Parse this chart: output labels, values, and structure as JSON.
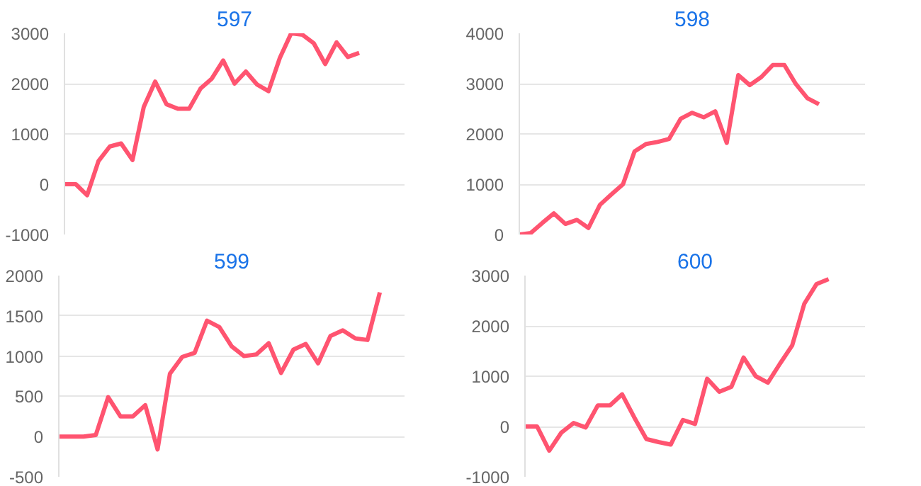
{
  "chart_data": [
    {
      "type": "line",
      "title": "597",
      "categories": [
        null,
        null,
        null,
        null,
        null,
        null,
        null,
        null,
        null,
        null,
        null,
        null,
        null,
        null,
        null,
        null,
        null,
        null,
        null,
        null,
        null,
        null,
        null,
        null,
        null,
        null,
        null,
        null,
        null,
        null,
        null
      ],
      "series": [
        {
          "color": "#ff5470",
          "values": [
            0,
            0,
            -220,
            460,
            750,
            810,
            480,
            1540,
            2040,
            1590,
            1500,
            1500,
            1900,
            2100,
            2460,
            2000,
            2240,
            1980,
            1850,
            2510,
            3000,
            2970,
            2800,
            2390,
            2820,
            2530,
            2610,
            null,
            null,
            null,
            null
          ]
        }
      ],
      "ylim": [
        -1000,
        3000
      ],
      "yticks": [
        -1000,
        0,
        1000,
        2000,
        3000
      ],
      "grid": "y",
      "tick_labels": "y",
      "line_style": "solid",
      "marker": "none"
    },
    {
      "type": "line",
      "title": "598",
      "categories": [
        null,
        null,
        null,
        null,
        null,
        null,
        null,
        null,
        null,
        null,
        null,
        null,
        null,
        null,
        null,
        null,
        null,
        null,
        null,
        null,
        null,
        null,
        null,
        null,
        null,
        null,
        null,
        null,
        null,
        null,
        null
      ],
      "series": [
        {
          "color": "#ff5470",
          "values": [
            0,
            30,
            230,
            420,
            210,
            290,
            130,
            590,
            800,
            1000,
            1650,
            1800,
            1840,
            1900,
            2300,
            2420,
            2330,
            2450,
            1820,
            3170,
            2970,
            3130,
            3370,
            3370,
            2990,
            2710,
            2590,
            null,
            null,
            null,
            null
          ]
        }
      ],
      "ylim": [
        0,
        4000
      ],
      "yticks": [
        0,
        1000,
        2000,
        3000,
        4000
      ],
      "grid": "y",
      "tick_labels": "y",
      "line_style": "solid",
      "marker": "none"
    },
    {
      "type": "line",
      "title": "599",
      "categories": [
        null,
        null,
        null,
        null,
        null,
        null,
        null,
        null,
        null,
        null,
        null,
        null,
        null,
        null,
        null,
        null,
        null,
        null,
        null,
        null,
        null,
        null,
        null,
        null,
        null,
        null,
        null,
        null,
        null
      ],
      "series": [
        {
          "color": "#ff5470",
          "values": [
            0,
            0,
            0,
            20,
            490,
            250,
            250,
            390,
            -160,
            780,
            990,
            1040,
            1440,
            1360,
            1120,
            1000,
            1020,
            1160,
            790,
            1080,
            1150,
            910,
            1250,
            1320,
            1220,
            1200,
            1790,
            null,
            null
          ]
        }
      ],
      "ylim": [
        -500,
        2000
      ],
      "yticks": [
        -500,
        0,
        500,
        1000,
        1500,
        2000
      ],
      "grid": "y",
      "tick_labels": "y",
      "line_style": "solid",
      "marker": "none"
    },
    {
      "type": "line",
      "title": "600",
      "categories": [
        null,
        null,
        null,
        null,
        null,
        null,
        null,
        null,
        null,
        null,
        null,
        null,
        null,
        null,
        null,
        null,
        null,
        null,
        null,
        null,
        null,
        null,
        null,
        null,
        null,
        null,
        null,
        null,
        null
      ],
      "series": [
        {
          "color": "#ff5470",
          "values": [
            0,
            0,
            -480,
            -120,
            70,
            -20,
            420,
            420,
            640,
            180,
            -250,
            -310,
            -360,
            130,
            50,
            950,
            690,
            790,
            1370,
            1000,
            870,
            1250,
            1610,
            2440,
            2830,
            2930,
            null,
            null,
            null
          ]
        }
      ],
      "ylim": [
        -1000,
        3000
      ],
      "yticks": [
        -1000,
        0,
        1000,
        2000,
        3000
      ],
      "grid": "y",
      "tick_labels": "y",
      "line_style": "solid",
      "marker": "none"
    }
  ]
}
